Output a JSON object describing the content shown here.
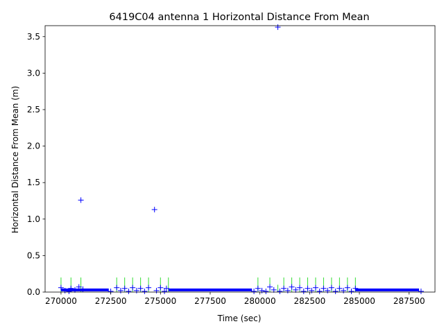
{
  "chart_data": {
    "type": "scatter",
    "title": "6419C04 antenna 1 Horizontal Distance From Mean",
    "xlabel": "Time (sec)",
    "ylabel": "Horizontal Distance From Mean (m)",
    "xlim": [
      269200,
      288800
    ],
    "ylim": [
      0,
      3.65
    ],
    "xticks": [
      270000,
      272500,
      275000,
      277500,
      280000,
      282500,
      285000,
      287500
    ],
    "xtick_labels": [
      "270000",
      "272500",
      "275000",
      "277500",
      "280000",
      "282500",
      "285000",
      "287500"
    ],
    "yticks": [
      0.0,
      0.5,
      1.0,
      1.5,
      2.0,
      2.5,
      3.0,
      3.5
    ],
    "ytick_labels": [
      "0.0",
      "0.5",
      "1.0",
      "1.5",
      "2.0",
      "2.5",
      "3.0",
      "3.5"
    ],
    "grid": false,
    "colors": {
      "points": "#0000ff",
      "error_bars": "#33dd33",
      "axes": "#000000"
    },
    "marker": "+",
    "segments": [
      {
        "x_start": 270000,
        "x_end": 272400,
        "y": 0.03
      },
      {
        "x_start": 275400,
        "x_end": 279600,
        "y": 0.03
      },
      {
        "x_start": 284800,
        "x_end": 288000,
        "y": 0.03
      }
    ],
    "points": [
      {
        "x": 270000,
        "y": 0.06
      },
      {
        "x": 270200,
        "y": 0.02
      },
      {
        "x": 270400,
        "y": 0.01
      },
      {
        "x": 270500,
        "y": 0.05
      },
      {
        "x": 270700,
        "y": 0.03
      },
      {
        "x": 270900,
        "y": 0.07
      },
      {
        "x": 271000,
        "y": 1.26
      },
      {
        "x": 271100,
        "y": 0.04
      },
      {
        "x": 272500,
        "y": 0.01
      },
      {
        "x": 272800,
        "y": 0.06
      },
      {
        "x": 273000,
        "y": 0.02
      },
      {
        "x": 273200,
        "y": 0.05
      },
      {
        "x": 273400,
        "y": 0.01
      },
      {
        "x": 273600,
        "y": 0.06
      },
      {
        "x": 273800,
        "y": 0.02
      },
      {
        "x": 274000,
        "y": 0.05
      },
      {
        "x": 274200,
        "y": 0.01
      },
      {
        "x": 274400,
        "y": 0.06
      },
      {
        "x": 274700,
        "y": 1.13
      },
      {
        "x": 274800,
        "y": 0.02
      },
      {
        "x": 275000,
        "y": 0.06
      },
      {
        "x": 275200,
        "y": 0.01
      },
      {
        "x": 275300,
        "y": 0.05
      },
      {
        "x": 279700,
        "y": 0.01
      },
      {
        "x": 279900,
        "y": 0.05
      },
      {
        "x": 280100,
        "y": 0.02
      },
      {
        "x": 280300,
        "y": 0.01
      },
      {
        "x": 280500,
        "y": 0.07
      },
      {
        "x": 280700,
        "y": 0.03
      },
      {
        "x": 280900,
        "y": 3.63
      },
      {
        "x": 281000,
        "y": 0.01
      },
      {
        "x": 281200,
        "y": 0.05
      },
      {
        "x": 281400,
        "y": 0.02
      },
      {
        "x": 281600,
        "y": 0.07
      },
      {
        "x": 281800,
        "y": 0.03
      },
      {
        "x": 282000,
        "y": 0.06
      },
      {
        "x": 282200,
        "y": 0.01
      },
      {
        "x": 282400,
        "y": 0.05
      },
      {
        "x": 282600,
        "y": 0.02
      },
      {
        "x": 282800,
        "y": 0.06
      },
      {
        "x": 283000,
        "y": 0.01
      },
      {
        "x": 283200,
        "y": 0.05
      },
      {
        "x": 283400,
        "y": 0.02
      },
      {
        "x": 283600,
        "y": 0.06
      },
      {
        "x": 283800,
        "y": 0.01
      },
      {
        "x": 284000,
        "y": 0.05
      },
      {
        "x": 284200,
        "y": 0.02
      },
      {
        "x": 284400,
        "y": 0.06
      },
      {
        "x": 284600,
        "y": 0.01
      },
      {
        "x": 284800,
        "y": 0.05
      },
      {
        "x": 288100,
        "y": 0.01
      }
    ],
    "error_bars": [
      {
        "x": 270000,
        "y_low": 0.0,
        "y_high": 0.2
      },
      {
        "x": 270500,
        "y_low": 0.0,
        "y_high": 0.2
      },
      {
        "x": 271000,
        "y_low": 0.0,
        "y_high": 0.2
      },
      {
        "x": 272800,
        "y_low": 0.0,
        "y_high": 0.2
      },
      {
        "x": 273200,
        "y_low": 0.0,
        "y_high": 0.2
      },
      {
        "x": 273600,
        "y_low": 0.0,
        "y_high": 0.2
      },
      {
        "x": 274000,
        "y_low": 0.0,
        "y_high": 0.2
      },
      {
        "x": 274400,
        "y_low": 0.0,
        "y_high": 0.2
      },
      {
        "x": 275000,
        "y_low": 0.0,
        "y_high": 0.2
      },
      {
        "x": 275400,
        "y_low": 0.0,
        "y_high": 0.2
      },
      {
        "x": 279900,
        "y_low": 0.0,
        "y_high": 0.2
      },
      {
        "x": 280500,
        "y_low": 0.0,
        "y_high": 0.2
      },
      {
        "x": 280900,
        "y_low": 0.0,
        "y_high": 0.1
      },
      {
        "x": 281200,
        "y_low": 0.0,
        "y_high": 0.2
      },
      {
        "x": 281600,
        "y_low": 0.0,
        "y_high": 0.2
      },
      {
        "x": 282000,
        "y_low": 0.0,
        "y_high": 0.2
      },
      {
        "x": 282400,
        "y_low": 0.0,
        "y_high": 0.2
      },
      {
        "x": 282800,
        "y_low": 0.0,
        "y_high": 0.2
      },
      {
        "x": 283200,
        "y_low": 0.0,
        "y_high": 0.2
      },
      {
        "x": 283600,
        "y_low": 0.0,
        "y_high": 0.2
      },
      {
        "x": 284000,
        "y_low": 0.0,
        "y_high": 0.2
      },
      {
        "x": 284400,
        "y_low": 0.0,
        "y_high": 0.2
      },
      {
        "x": 284800,
        "y_low": 0.0,
        "y_high": 0.2
      }
    ]
  }
}
